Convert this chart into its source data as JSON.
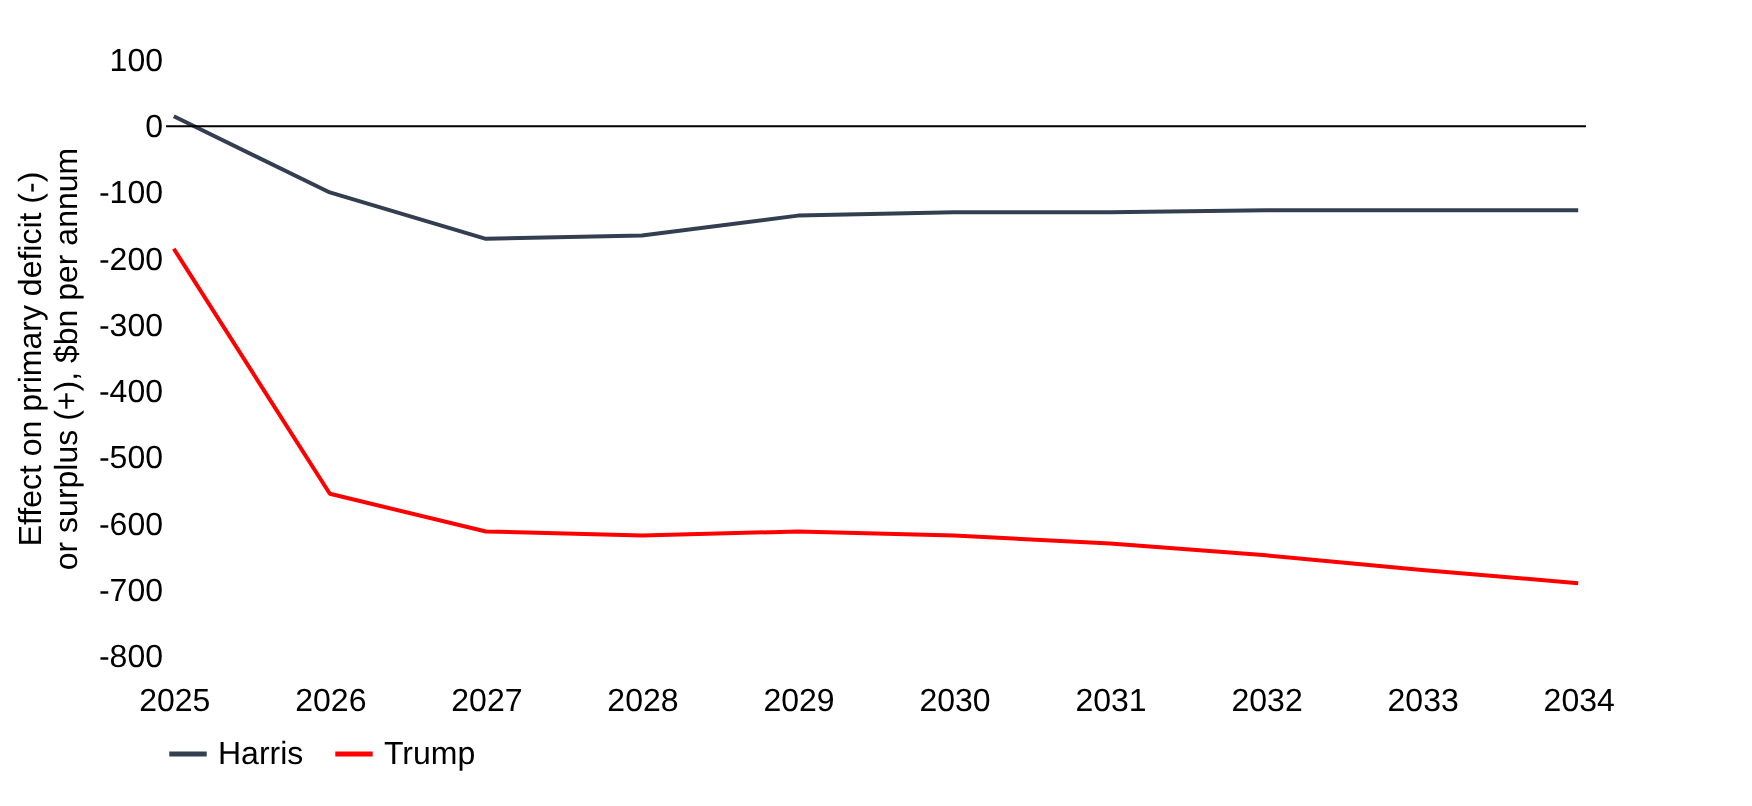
{
  "chart_data": {
    "type": "line",
    "ylabel": "Effect on primary deficit (-) or surplus (+), $bn per annum",
    "categories": [
      "2025",
      "2026",
      "2027",
      "2028",
      "2029",
      "2030",
      "2031",
      "2032",
      "2033",
      "2034"
    ],
    "series": [
      {
        "name": "Harris",
        "color": "#333f50",
        "values": [
          15,
          -100,
          -170,
          -165,
          -135,
          -130,
          -130,
          -127,
          -127,
          -127
        ]
      },
      {
        "name": "Trump",
        "color": "#ff0000",
        "values": [
          -185,
          -555,
          -612,
          -618,
          -612,
          -618,
          -630,
          -648,
          -670,
          -690
        ]
      }
    ],
    "ylim": [
      -800,
      100
    ],
    "yticks": [
      100,
      0,
      -100,
      -200,
      -300,
      -400,
      -500,
      -600,
      -700,
      -800
    ],
    "ref_lines": [
      {
        "axis": "y",
        "value": 0,
        "color": "#000000"
      }
    ],
    "grid": false,
    "legend": "bottom",
    "marker": "none",
    "line_style": "solid"
  }
}
